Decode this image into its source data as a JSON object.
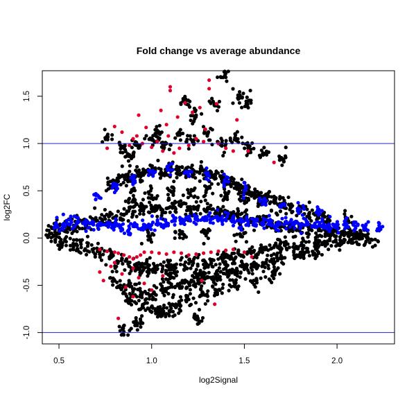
{
  "chart_data": {
    "type": "scatter",
    "title": "Fold change vs average abundance",
    "xlabel": "log2Signal",
    "ylabel": "log2FC",
    "xlim": [
      0.41,
      2.31
    ],
    "ylim": [
      -1.12,
      1.77
    ],
    "xticks": [
      0.5,
      1.0,
      1.5,
      2.0
    ],
    "yticks": [
      -1.0,
      -0.5,
      0.0,
      0.5,
      1.0,
      1.5
    ],
    "xtick_labels": [
      "0.5",
      "1.0",
      "1.5",
      "2.0"
    ],
    "ytick_labels": [
      "-1.0",
      "-0.5",
      "0.0",
      "0.5",
      "1.0",
      "1.5"
    ],
    "hlines": [
      1.0,
      -1.0
    ],
    "hline_color": "#2020c8",
    "grid": false,
    "point_colors": {
      "black": "#000000",
      "blue": "#0000ff",
      "red": "#e0002a"
    },
    "series": [
      {
        "color": "black",
        "x": [
          0.46,
          0.48,
          0.5,
          0.52,
          0.55,
          0.58,
          0.6,
          0.62,
          0.65,
          0.68,
          0.7,
          0.72,
          0.75,
          0.78,
          0.8,
          0.82,
          0.85,
          0.88,
          0.9,
          0.92,
          0.95,
          0.98,
          1.0,
          1.02,
          1.05,
          1.08,
          1.1,
          1.12,
          1.15,
          1.18,
          1.2,
          1.22,
          1.25,
          1.28,
          1.3,
          1.32,
          1.35,
          1.38,
          1.4,
          1.42,
          1.45,
          1.48,
          1.5,
          1.52,
          1.55,
          1.58,
          1.6,
          1.62,
          1.65,
          1.68,
          1.7,
          1.72,
          1.75,
          1.78,
          1.8,
          1.82,
          1.85,
          1.88,
          1.9,
          1.92,
          1.95,
          1.98,
          2.0,
          2.02,
          2.05,
          2.08,
          2.1,
          2.12,
          2.15,
          2.19,
          0.78,
          0.82,
          0.86,
          0.9,
          0.94,
          0.98,
          1.02,
          1.06,
          1.1,
          1.14,
          1.18,
          1.22,
          1.26,
          1.3,
          1.34,
          1.38,
          1.42,
          1.46,
          1.5,
          1.54,
          1.58,
          1.62,
          1.66,
          1.7,
          1.75,
          1.8,
          1.85,
          1.9,
          1.95,
          2.05,
          0.8,
          0.85,
          0.9,
          0.95,
          1.0,
          1.05,
          1.1,
          1.15,
          1.2,
          1.25,
          1.3,
          1.35,
          1.4,
          1.45,
          1.5,
          1.55,
          1.6,
          1.65,
          1.7,
          1.8,
          1.9,
          0.85,
          0.92,
          1.0,
          1.08,
          1.15,
          1.22,
          1.3,
          1.38,
          1.45,
          1.52,
          1.6,
          1.7,
          0.76,
          0.88,
          1.04,
          1.18,
          1.24,
          1.34,
          1.4,
          1.47,
          1.52,
          0.85,
          0.92,
          1.02,
          1.08,
          1.15,
          1.25,
          0.88,
          0.95,
          1.05,
          1.13,
          1.2,
          1.28,
          1.35,
          1.45,
          1.55,
          1.65,
          0.9,
          1.0,
          1.1,
          1.2,
          1.3,
          1.4,
          1.5,
          1.6,
          0.95,
          1.1,
          1.25,
          1.4,
          0.98,
          1.15,
          1.3,
          1.48
        ],
        "y": [
          0.05,
          -0.02,
          0.08,
          -0.05,
          0.1,
          -0.08,
          0.12,
          -0.1,
          0.15,
          -0.12,
          0.18,
          -0.15,
          0.2,
          -0.2,
          0.22,
          -0.25,
          0.25,
          -0.3,
          0.28,
          -0.28,
          0.3,
          -0.3,
          0.32,
          -0.32,
          0.3,
          -0.35,
          0.33,
          -0.3,
          0.35,
          -0.3,
          0.3,
          -0.25,
          0.32,
          -0.28,
          0.3,
          -0.25,
          0.28,
          -0.22,
          0.25,
          -0.2,
          0.25,
          -0.18,
          0.22,
          -0.15,
          0.2,
          -0.15,
          0.18,
          -0.12,
          0.15,
          -0.1,
          0.12,
          -0.08,
          0.12,
          -0.1,
          0.1,
          -0.08,
          0.1,
          -0.06,
          0.08,
          -0.05,
          0.08,
          -0.04,
          0.06,
          -0.04,
          0.05,
          -0.02,
          0.04,
          -0.01,
          0.03,
          -0.02,
          0.55,
          0.6,
          0.65,
          0.62,
          0.68,
          0.7,
          0.72,
          0.68,
          0.75,
          0.7,
          0.72,
          0.68,
          0.7,
          0.66,
          0.65,
          0.62,
          0.6,
          0.55,
          0.52,
          0.48,
          0.45,
          0.42,
          0.38,
          0.35,
          0.32,
          0.28,
          0.25,
          0.22,
          0.2,
          0.18,
          -0.45,
          -0.5,
          -0.55,
          -0.58,
          -0.6,
          -0.55,
          -0.52,
          -0.5,
          -0.48,
          -0.45,
          -0.42,
          -0.4,
          -0.38,
          -0.35,
          -0.32,
          -0.3,
          -0.28,
          -0.25,
          -0.22,
          -0.18,
          -0.15,
          0.95,
          0.98,
          1.05,
          1.0,
          1.1,
          1.02,
          1.08,
          1.0,
          1.05,
          0.95,
          0.9,
          0.85,
          1.08,
          0.88,
          1.12,
          1.45,
          1.3,
          1.4,
          1.7,
          1.5,
          1.45,
          -0.99,
          -0.9,
          -0.75,
          -0.8,
          -0.7,
          -0.85,
          -0.68,
          -0.72,
          -0.8,
          -0.7,
          -0.65,
          -0.6,
          -0.55,
          -0.5,
          -0.45,
          -0.4,
          0.4,
          0.45,
          0.5,
          0.48,
          0.52,
          0.46,
          0.42,
          0.38,
          -0.35,
          -0.4,
          -0.38,
          -0.32,
          0.02,
          0.04,
          0.06,
          0.03
        ],
        "jitter": {
          "copies": 14,
          "dx": 0.05,
          "dy": 0.12
        }
      },
      {
        "color": "blue",
        "x": [
          0.48,
          0.52,
          0.56,
          0.6,
          0.64,
          0.68,
          0.72,
          0.76,
          0.8,
          0.84,
          0.88,
          0.92,
          0.96,
          1.0,
          1.04,
          1.08,
          1.12,
          1.16,
          1.2,
          1.24,
          1.28,
          1.32,
          1.36,
          1.4,
          1.44,
          1.48,
          1.52,
          1.56,
          1.6,
          1.64,
          1.68,
          1.72,
          1.76,
          1.8,
          1.84,
          1.88,
          1.92,
          1.96,
          2.0,
          2.05,
          2.1,
          2.15,
          2.23,
          0.7,
          0.8,
          0.9,
          1.0,
          1.1,
          1.2,
          1.3,
          1.4,
          1.5,
          1.6,
          1.7,
          1.8,
          1.9
        ],
        "y": [
          0.12,
          0.14,
          0.15,
          0.16,
          0.16,
          0.15,
          0.14,
          0.14,
          0.12,
          0.1,
          0.1,
          0.12,
          0.13,
          0.14,
          0.15,
          0.16,
          0.18,
          0.18,
          0.2,
          0.2,
          0.2,
          0.2,
          0.2,
          0.2,
          0.2,
          0.18,
          0.18,
          0.18,
          0.16,
          0.16,
          0.15,
          0.15,
          0.15,
          0.14,
          0.14,
          0.14,
          0.13,
          0.12,
          0.12,
          0.12,
          0.12,
          0.12,
          0.12,
          0.45,
          0.55,
          0.6,
          0.7,
          0.72,
          0.7,
          0.68,
          0.6,
          0.5,
          0.4,
          0.35,
          0.3,
          0.28
        ],
        "jitter": {
          "copies": 10,
          "dx": 0.03,
          "dy": 0.1
        }
      },
      {
        "color": "red",
        "x": [
          1.1,
          1.1,
          1.31,
          1.31,
          1.35,
          1.46,
          0.93,
          0.97,
          1.05,
          1.08,
          1.14,
          1.18,
          1.22,
          1.26,
          1.29,
          0.76,
          0.8,
          0.84,
          0.88,
          0.9,
          0.92,
          0.95,
          1.0,
          1.03,
          1.06,
          1.09,
          1.12,
          1.15,
          1.2,
          1.24,
          1.28,
          1.36,
          1.4,
          1.44,
          1.52,
          1.66,
          0.72,
          0.76,
          0.8,
          0.82,
          0.85,
          0.88,
          0.9,
          0.92,
          0.94,
          0.96,
          1.0,
          1.04,
          1.08,
          1.12,
          1.16,
          1.2,
          1.24,
          1.28,
          1.32,
          1.36,
          1.4,
          1.44,
          1.5,
          1.54,
          0.72,
          0.74,
          0.78,
          0.8,
          0.84,
          0.86,
          0.9,
          0.93,
          0.96,
          1.0,
          1.06,
          1.27,
          1.34,
          0.82,
          0.9
        ],
        "y": [
          1.6,
          1.56,
          1.67,
          1.58,
          1.42,
          1.25,
          1.3,
          1.17,
          1.35,
          1.2,
          1.28,
          1.43,
          1.33,
          1.38,
          1.15,
          0.95,
          1.18,
          1.12,
          0.98,
          1.05,
          1.08,
          1.0,
          0.96,
          1.02,
          0.92,
          1.08,
          0.9,
          0.95,
          0.98,
          1.05,
          1.02,
          1.0,
          0.95,
          0.92,
          0.92,
          0.8,
          -0.12,
          -0.14,
          -0.15,
          -0.16,
          -0.18,
          -0.2,
          -0.22,
          -0.2,
          -0.18,
          -0.15,
          -0.15,
          -0.16,
          -0.17,
          -0.15,
          -0.16,
          -0.18,
          -0.17,
          -0.16,
          -0.15,
          -0.14,
          -0.13,
          -0.12,
          -0.15,
          -0.2,
          -0.36,
          -0.45,
          -0.3,
          -0.26,
          -0.38,
          -0.52,
          -0.32,
          -0.42,
          -0.48,
          -0.55,
          -0.4,
          -0.45,
          -0.7,
          -0.85,
          -0.62
        ],
        "jitter": {
          "copies": 1,
          "dx": 0.0,
          "dy": 0.0
        }
      }
    ]
  }
}
